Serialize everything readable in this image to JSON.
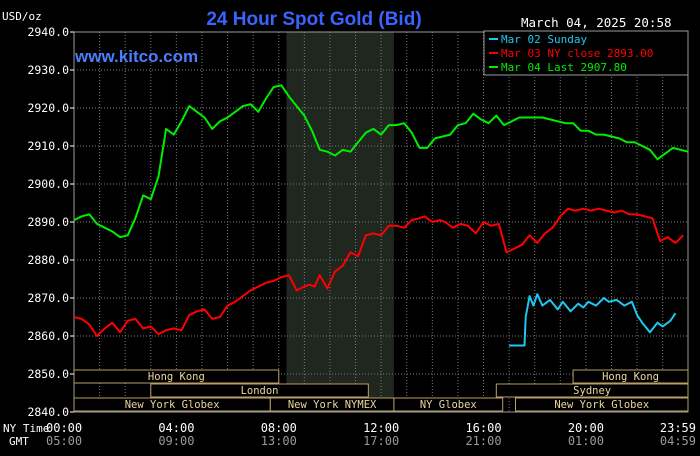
{
  "header": {
    "units": "USD/oz",
    "title": "24 Hour Spot Gold (Bid)",
    "timestamp": "March 04, 2025 20:58",
    "watermark": "www.kitco.com"
  },
  "colors": {
    "background": "#000000",
    "grid": "#7a7a7a",
    "session_shade": "#1f271f",
    "title": "#3b63ff",
    "watermark": "#4d7dff",
    "mar02": "#1ec8f0",
    "mar03": "#ff0000",
    "mar04": "#00ee00",
    "market_bar_fill": "#000000",
    "market_bar_border": "#b8a066",
    "market_text": "#ead6a0"
  },
  "legend": [
    {
      "label": "Mar 02 Sunday",
      "color_key": "mar02"
    },
    {
      "label": "Mar 03 NY close 2893.00",
      "color_key": "mar03"
    },
    {
      "label": "Mar 04 Last 2907.80",
      "color_key": "mar04"
    }
  ],
  "time_axis": {
    "row1_prefix": "NY Time",
    "row2_prefix": "GMT",
    "ny_labels": [
      "00:00",
      "04:00",
      "08:00",
      "12:00",
      "16:00",
      "20:00",
      "23:59"
    ],
    "gmt_labels": [
      "05:00",
      "09:00",
      "13:00",
      "17:00",
      "21:00",
      "01:00",
      "04:59"
    ]
  },
  "markets": [
    {
      "name": "Hong Kong",
      "start": 0.0,
      "end": 8.0,
      "row": 0
    },
    {
      "name": "London",
      "start": 3.0,
      "end": 11.5,
      "row": 1
    },
    {
      "name": "New York Globex",
      "start": 0.0,
      "end": 7.67,
      "row": 2
    },
    {
      "name": "New York NYMEX",
      "start": 7.67,
      "end": 12.5,
      "row": 2
    },
    {
      "name": "NY Globex",
      "start": 12.5,
      "end": 16.75,
      "row": 2
    },
    {
      "name": "Hong Kong",
      "start": 19.5,
      "end": 23.99,
      "row": 0
    },
    {
      "name": "Sydney",
      "start": 16.5,
      "end": 23.99,
      "row": 1
    },
    {
      "name": "New York Globex",
      "start": 17.25,
      "end": 23.99,
      "row": 2
    }
  ],
  "chart_data": {
    "type": "line",
    "title": "24 Hour Spot Gold (Bid)",
    "xlabel": "NY Time",
    "ylabel": "USD/oz",
    "xlim": [
      0,
      23.99
    ],
    "ylim": [
      2840,
      2940
    ],
    "yticks": [
      2840,
      2850,
      2860,
      2870,
      2880,
      2890,
      2900,
      2910,
      2920,
      2930,
      2940
    ],
    "ytick_labels": [
      "2840.0",
      "2850.0",
      "2860.0",
      "2870.0",
      "2880.0",
      "2890.0",
      "2900.0",
      "2910.0",
      "2920.0",
      "2930.0",
      "2940.0"
    ],
    "grid": true,
    "shaded_session": [
      8.3,
      12.5
    ],
    "legend_position": "top-right",
    "series": [
      {
        "name": "Mar 02 Sunday",
        "color_key": "mar02",
        "x": [
          17.0,
          17.6,
          17.65,
          17.8,
          17.95,
          18.1,
          18.3,
          18.6,
          18.9,
          19.1,
          19.4,
          19.7,
          19.9,
          20.1,
          20.4,
          20.7,
          20.9,
          21.2,
          21.5,
          21.8,
          22.0,
          22.2,
          22.5,
          22.8,
          23.0,
          23.3,
          23.5
        ],
        "y": [
          2857.5,
          2857.5,
          2865.0,
          2870.5,
          2868.0,
          2871.0,
          2868.0,
          2869.5,
          2867.0,
          2869.0,
          2866.5,
          2868.5,
          2867.5,
          2869.0,
          2868.0,
          2870.0,
          2869.0,
          2869.5,
          2868.0,
          2869.0,
          2865.5,
          2863.5,
          2861.0,
          2863.5,
          2862.5,
          2864.0,
          2866.0
        ]
      },
      {
        "name": "Mar 03 NY close 2893.00",
        "color_key": "mar03",
        "x": [
          0.0,
          0.3,
          0.6,
          0.9,
          1.2,
          1.5,
          1.8,
          2.1,
          2.4,
          2.7,
          3.0,
          3.3,
          3.6,
          3.9,
          4.2,
          4.5,
          4.8,
          5.1,
          5.4,
          5.7,
          6.0,
          6.3,
          6.6,
          6.9,
          7.2,
          7.5,
          7.8,
          8.1,
          8.4,
          8.7,
          9.0,
          9.2,
          9.4,
          9.6,
          9.9,
          10.2,
          10.5,
          10.8,
          11.1,
          11.4,
          11.7,
          12.0,
          12.3,
          12.6,
          12.9,
          13.2,
          13.5,
          13.7,
          14.0,
          14.3,
          14.5,
          14.8,
          15.1,
          15.4,
          15.7,
          16.0,
          16.3,
          16.6,
          16.9,
          17.2,
          17.5,
          17.8,
          18.1,
          18.4,
          18.7,
          19.0,
          19.3,
          19.6,
          19.9,
          20.2,
          20.5,
          20.8,
          21.1,
          21.4,
          21.7,
          22.0,
          22.3,
          22.6,
          22.9,
          23.2,
          23.5,
          23.8
        ],
        "y": [
          2865.0,
          2864.5,
          2863.0,
          2860.0,
          2862.0,
          2863.5,
          2861.0,
          2864.0,
          2864.5,
          2862.0,
          2862.5,
          2860.5,
          2861.5,
          2862.0,
          2861.5,
          2865.5,
          2866.5,
          2867.0,
          2864.5,
          2865.0,
          2868.0,
          2869.0,
          2870.5,
          2872.0,
          2873.0,
          2874.0,
          2874.5,
          2875.5,
          2876.0,
          2872.0,
          2873.0,
          2873.5,
          2873.0,
          2876.0,
          2872.5,
          2877.0,
          2878.5,
          2882.0,
          2881.0,
          2886.5,
          2887.0,
          2886.5,
          2889.0,
          2889.0,
          2888.5,
          2890.5,
          2891.0,
          2891.5,
          2890.0,
          2890.5,
          2890.0,
          2888.5,
          2889.5,
          2889.0,
          2887.0,
          2890.0,
          2889.0,
          2889.5,
          2882.0,
          2883.0,
          2884.0,
          2886.5,
          2884.5,
          2887.0,
          2888.5,
          2891.5,
          2893.5,
          2893.0,
          2893.5,
          2893.0,
          2893.5,
          2893.0,
          2892.5,
          2893.0,
          2892.0,
          2892.0,
          2891.5,
          2891.0,
          2885.0,
          2886.0,
          2884.5,
          2886.5
        ]
      },
      {
        "name": "Mar 04 Last 2907.80",
        "color_key": "mar04",
        "x": [
          0.0,
          0.3,
          0.6,
          0.9,
          1.2,
          1.5,
          1.8,
          2.1,
          2.4,
          2.7,
          3.0,
          3.3,
          3.6,
          3.9,
          4.2,
          4.5,
          4.8,
          5.1,
          5.4,
          5.7,
          6.0,
          6.3,
          6.6,
          6.9,
          7.2,
          7.5,
          7.8,
          8.1,
          8.4,
          8.7,
          9.0,
          9.3,
          9.6,
          9.9,
          10.2,
          10.5,
          10.8,
          11.1,
          11.4,
          11.7,
          12.0,
          12.3,
          12.6,
          12.9,
          13.2,
          13.5,
          13.8,
          14.1,
          14.4,
          14.7,
          15.0,
          15.3,
          15.6,
          15.9,
          16.2,
          16.5,
          16.8,
          17.1,
          17.4,
          17.7,
          18.0,
          18.3,
          18.6,
          18.9,
          19.2,
          19.5,
          19.8,
          20.1,
          20.4,
          20.7,
          21.0,
          21.3,
          21.6,
          21.9,
          22.2,
          22.5,
          22.8,
          23.1,
          23.4,
          23.7,
          23.99
        ],
        "y": [
          2890.5,
          2891.5,
          2892.0,
          2889.5,
          2888.5,
          2887.5,
          2886.0,
          2886.5,
          2891.0,
          2897.0,
          2896.0,
          2902.0,
          2914.5,
          2913.0,
          2916.5,
          2920.5,
          2919.0,
          2917.5,
          2914.5,
          2916.5,
          2917.5,
          2919.0,
          2920.5,
          2921.0,
          2919.0,
          2922.5,
          2925.5,
          2926.0,
          2923.0,
          2920.5,
          2918.0,
          2914.0,
          2909.0,
          2908.5,
          2907.5,
          2909.0,
          2908.5,
          2911.0,
          2913.5,
          2914.5,
          2913.0,
          2915.5,
          2915.5,
          2916.0,
          2913.5,
          2909.5,
          2909.5,
          2912.0,
          2912.5,
          2913.0,
          2915.5,
          2916.0,
          2918.5,
          2917.0,
          2916.0,
          2918.0,
          2915.5,
          2916.5,
          2917.5,
          2917.5,
          2917.5,
          2917.5,
          2917.0,
          2916.5,
          2916.0,
          2916.0,
          2914.0,
          2914.0,
          2913.0,
          2913.0,
          2912.5,
          2912.0,
          2911.0,
          2911.0,
          2910.0,
          2909.0,
          2906.5,
          2908.0,
          2909.5,
          2909.0,
          2908.5
        ]
      }
    ]
  }
}
